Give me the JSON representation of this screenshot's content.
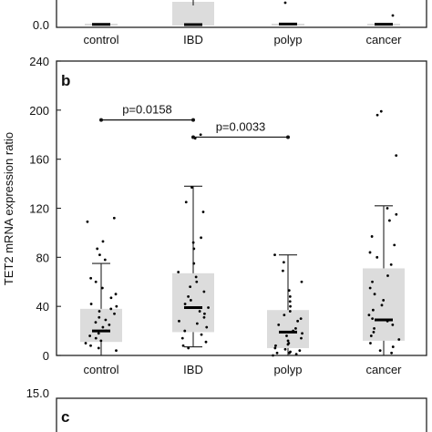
{
  "chart_data": [
    {
      "panel": "a",
      "type": "box",
      "categories": [
        "control",
        "IBD",
        "polyp",
        "cancer"
      ],
      "yticks": [
        "0.0"
      ],
      "partial": "top of panel cropped; only lower edge visible",
      "medians": [
        0.3,
        0,
        0.6,
        0.4
      ],
      "box_q3": [
        0.3,
        22,
        0.6,
        0.4
      ]
    },
    {
      "panel": "b",
      "type": "box",
      "ylabel": "TET2 mRNA expression ratio",
      "ylim": [
        0,
        240
      ],
      "yticks": [
        "0",
        "40",
        "80",
        "120",
        "160",
        "200",
        "240"
      ],
      "categories": [
        "control",
        "IBD",
        "polyp",
        "cancer"
      ],
      "boxes": [
        {
          "category": "control",
          "q1": 11,
          "median": 20,
          "q3": 38,
          "whisker_low": 0,
          "whisker_high": 75
        },
        {
          "category": "IBD",
          "q1": 19,
          "median": 39,
          "q3": 67,
          "whisker_low": 7,
          "whisker_high": 138
        },
        {
          "category": "polyp",
          "q1": 6,
          "median": 19,
          "q3": 37,
          "whisker_low": 0,
          "whisker_high": 82
        },
        {
          "category": "cancer",
          "q1": 12,
          "median": 29,
          "q3": 71,
          "whisker_low": 0,
          "whisker_high": 122
        }
      ],
      "points": [
        [
          112,
          109,
          93,
          87,
          82,
          78,
          63,
          60,
          55,
          50,
          47,
          42,
          40,
          38,
          36,
          34,
          31,
          29,
          27,
          25,
          23,
          20,
          18,
          16,
          14,
          12,
          10,
          8,
          6,
          4
        ],
        [
          180,
          177,
          137,
          125,
          117,
          96,
          92,
          87,
          75,
          68,
          64,
          60,
          56,
          52,
          48,
          45,
          42,
          39,
          36,
          34,
          31,
          28,
          26,
          23,
          20,
          17,
          14,
          11,
          8,
          6
        ],
        [
          82,
          76,
          69,
          60,
          53,
          48,
          44,
          40,
          36,
          33,
          30,
          28,
          25,
          22,
          20,
          18,
          16,
          14,
          12,
          10,
          9,
          8,
          6,
          5,
          4,
          3,
          2,
          2,
          1,
          0
        ],
        [
          199,
          196,
          163,
          120,
          115,
          110,
          97,
          90,
          84,
          80,
          74,
          65,
          60,
          55,
          50,
          45,
          41,
          37,
          33,
          30,
          28,
          25,
          22,
          19,
          16,
          13,
          10,
          7,
          4,
          2
        ]
      ],
      "comparisons": [
        {
          "from": "control",
          "to": "IBD",
          "label": "p=0.0158",
          "y": 192
        },
        {
          "from": "IBD",
          "to": "polyp",
          "label": "p=0.0033",
          "y": 178
        }
      ]
    },
    {
      "panel": "c",
      "type": "box",
      "yticks": [
        "15.0"
      ],
      "partial": "bottom of image cropped; only top edge visible"
    }
  ]
}
